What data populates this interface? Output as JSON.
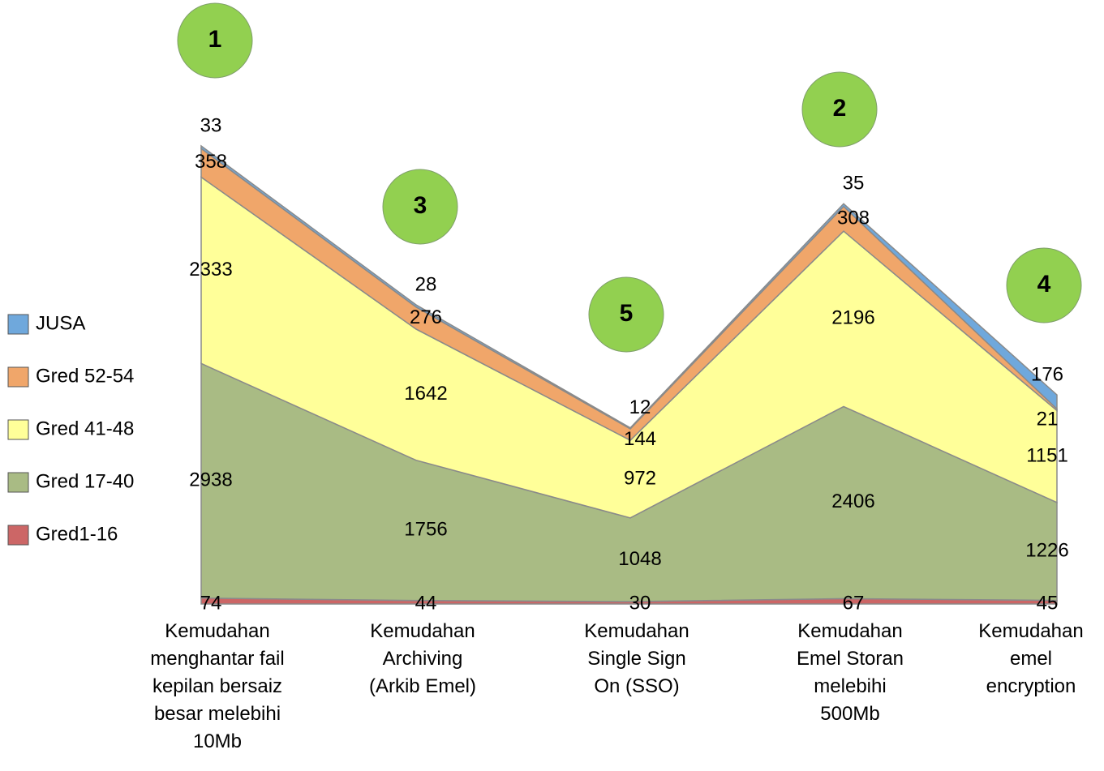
{
  "chart_data": {
    "type": "stacked_area",
    "categories": [
      "Kemudahan\nmenghantar fail\nkepilan bersaiz\nbesar melebihi\n10Mb",
      "Kemudahan\nArchiving\n(Arkib Emel)",
      "Kemudahan\nSingle  Sign\nOn (SSO)",
      "Kemudahan\nEmel Storan\nmelebihi\n500Mb",
      "Kemudahan\nemel\nencryption"
    ],
    "series": [
      {
        "name": "Gred1-16",
        "color": "#cc6666",
        "values": [
          74,
          44,
          30,
          67,
          45
        ]
      },
      {
        "name": "Gred 17-40",
        "color": "#a9bb84",
        "values": [
          2938,
          1756,
          1048,
          2406,
          1226
        ]
      },
      {
        "name": "Gred 41-48",
        "color": "#ffff99",
        "values": [
          2333,
          1642,
          972,
          2196,
          1151
        ]
      },
      {
        "name": "Gred 52-54",
        "color": "#f0a66a",
        "values": [
          358,
          276,
          144,
          308,
          21
        ]
      },
      {
        "name": "JUSA",
        "color": "#6fa8dc",
        "values": [
          33,
          28,
          12,
          35,
          176
        ]
      }
    ],
    "rank_labels": [
      "1",
      "3",
      "5",
      "2",
      "4"
    ],
    "legend": "left"
  }
}
